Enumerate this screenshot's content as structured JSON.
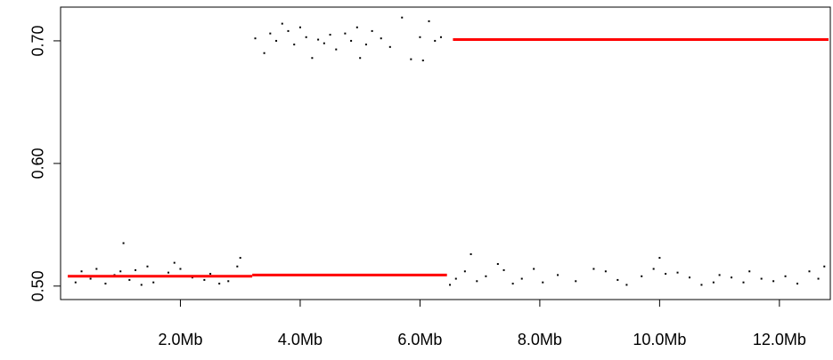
{
  "chart_data": {
    "type": "scatter",
    "xlim": [
      0,
      12.85
    ],
    "ylim": [
      0.489,
      0.7275
    ],
    "xticks": [
      {
        "value": 2,
        "label": "2.0Mb"
      },
      {
        "value": 4,
        "label": "4.0Mb"
      },
      {
        "value": 6,
        "label": "6.0Mb"
      },
      {
        "value": 8,
        "label": "8.0Mb"
      },
      {
        "value": 10,
        "label": "10.0Mb"
      },
      {
        "value": 12,
        "label": "12.0Mb"
      }
    ],
    "yticks": [
      {
        "value": 0.5,
        "label": "0.50"
      },
      {
        "value": 0.6,
        "label": "0.60"
      },
      {
        "value": 0.7,
        "label": "0.70"
      }
    ],
    "series": [
      {
        "color": "#000000",
        "x": [
          0.25,
          0.35,
          0.5,
          0.6,
          0.75,
          0.9,
          1.0,
          1.05,
          1.15,
          1.25,
          1.35,
          1.45,
          1.55,
          1.7,
          1.8,
          1.9,
          2.0,
          2.2,
          2.4,
          2.5,
          2.65,
          2.8,
          2.95,
          3.0,
          3.1,
          3.25,
          3.4,
          3.5,
          3.6,
          3.7,
          3.8,
          3.9,
          4.0,
          4.1,
          4.2,
          4.3,
          4.4,
          4.5,
          4.6,
          4.75,
          4.85,
          4.95,
          5.0,
          5.1,
          5.2,
          5.35,
          5.5,
          5.7,
          5.85,
          6.0,
          6.05,
          6.15,
          6.25,
          6.35,
          6.5,
          6.6,
          6.75,
          6.85,
          6.95,
          7.1,
          7.3,
          7.4,
          7.55,
          7.7,
          7.9,
          8.05,
          8.3,
          8.6,
          8.9,
          9.1,
          9.3,
          9.45,
          9.7,
          9.9,
          10.0,
          10.1,
          10.3,
          10.5,
          10.7,
          10.9,
          11.0,
          11.2,
          11.4,
          11.5,
          11.7,
          11.9,
          12.1,
          12.3,
          12.5,
          12.65,
          12.75
        ],
        "values": [
          0.503,
          0.512,
          0.506,
          0.514,
          0.502,
          0.509,
          0.512,
          0.535,
          0.505,
          0.513,
          0.501,
          0.516,
          0.503,
          0.508,
          0.511,
          0.519,
          0.514,
          0.507,
          0.505,
          0.51,
          0.502,
          0.504,
          0.516,
          0.523,
          0.508,
          0.702,
          0.69,
          0.706,
          0.7,
          0.714,
          0.708,
          0.697,
          0.711,
          0.703,
          0.686,
          0.701,
          0.698,
          0.705,
          0.693,
          0.706,
          0.7,
          0.711,
          0.686,
          0.697,
          0.708,
          0.702,
          0.695,
          0.719,
          0.685,
          0.703,
          0.684,
          0.716,
          0.7,
          0.703,
          0.501,
          0.506,
          0.512,
          0.526,
          0.504,
          0.508,
          0.518,
          0.513,
          0.502,
          0.506,
          0.514,
          0.503,
          0.509,
          0.504,
          0.514,
          0.512,
          0.505,
          0.501,
          0.508,
          0.514,
          0.523,
          0.51,
          0.511,
          0.507,
          0.501,
          0.503,
          0.509,
          0.507,
          0.503,
          0.512,
          0.506,
          0.504,
          0.508,
          0.502,
          0.512,
          0.506,
          0.516
        ]
      }
    ],
    "segments": [
      {
        "color": "#ff0000",
        "x": [
          0.12,
          3.2
        ],
        "values": [
          0.508,
          0.508
        ]
      },
      {
        "color": "#ff0000",
        "x": [
          3.2,
          6.45
        ],
        "values": [
          0.509,
          0.509
        ]
      },
      {
        "color": "#ff0000",
        "x": [
          6.55,
          12.82
        ],
        "values": [
          0.701,
          0.701
        ]
      }
    ]
  }
}
